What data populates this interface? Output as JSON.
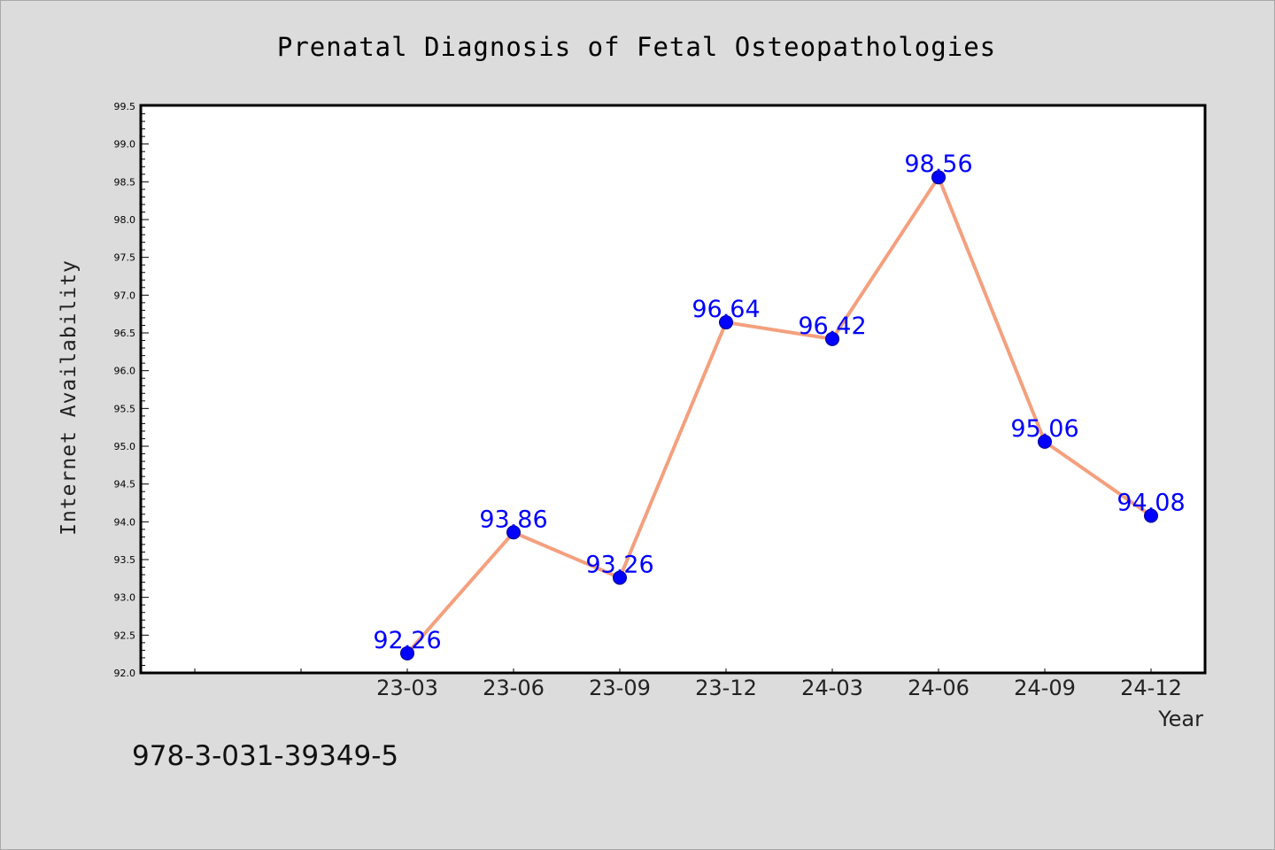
{
  "chart_data": {
    "type": "line",
    "title": "Prenatal Diagnosis of Fetal Osteopathologies",
    "xlabel": "Year",
    "ylabel": "Internet Availability",
    "categories": [
      "23-03",
      "23-06",
      "23-09",
      "23-12",
      "24-03",
      "24-06",
      "24-09",
      "24-12"
    ],
    "series": [
      {
        "values": [
          92.26,
          93.86,
          93.26,
          96.64,
          96.42,
          98.56,
          95.06,
          94.08
        ]
      }
    ],
    "ylim": [
      92.0,
      99.5
    ],
    "yticks": [
      "92.0",
      "92.5",
      "93.0",
      "93.5",
      "94.0",
      "94.5",
      "95.0",
      "95.5",
      "96.0",
      "96.5",
      "97.0",
      "97.5",
      "98.0",
      "98.5",
      "99.0",
      "99.5"
    ],
    "grid": false,
    "line_color": "#f4a07e",
    "marker_color": "#0000ff",
    "label_color": "#0000ff"
  },
  "footnote": "978-3-031-39349-5"
}
